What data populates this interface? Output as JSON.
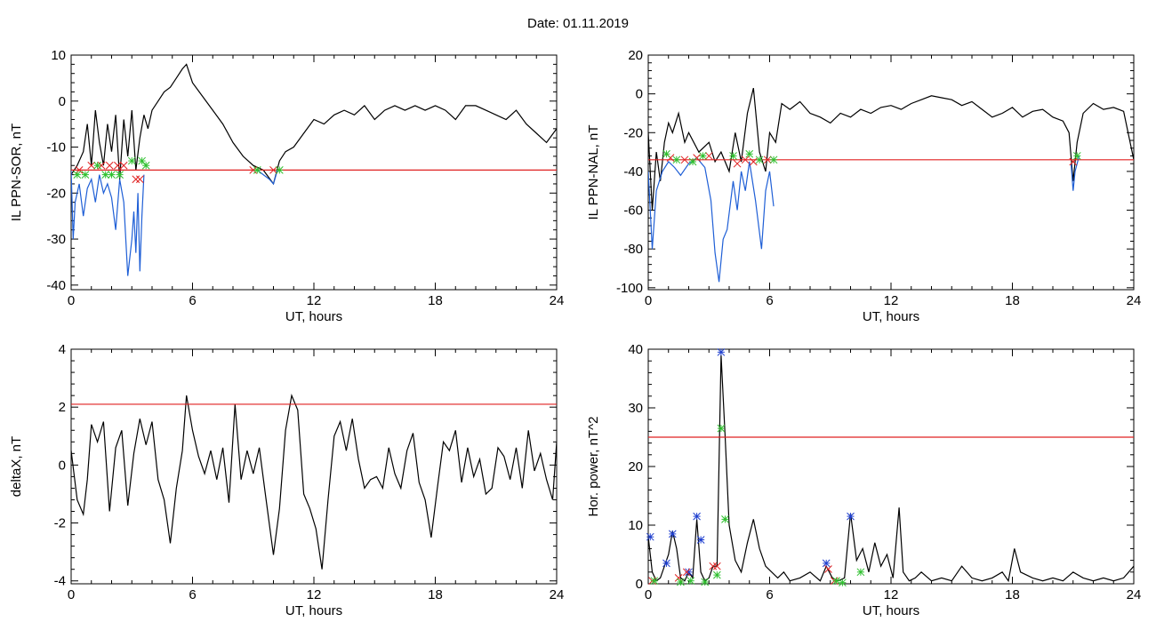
{
  "figure_title": "Date:  01.11.2019",
  "chart_data": [
    {
      "id": "ppn-sor",
      "type": "line",
      "xlabel": "UT, hours",
      "ylabel": "IL PPN-SOR, nT",
      "xlim": [
        0,
        24
      ],
      "ylim": [
        -41,
        10
      ],
      "xticks": [
        0,
        6,
        12,
        18,
        24
      ],
      "yticks": [
        -40,
        -30,
        -20,
        -10,
        0,
        10
      ],
      "threshold": -15,
      "series": [
        {
          "color": "#000000",
          "x": [
            0,
            0.3,
            0.6,
            0.8,
            1.0,
            1.2,
            1.4,
            1.6,
            1.8,
            2.0,
            2.2,
            2.4,
            2.6,
            2.8,
            3.0,
            3.2,
            3.4,
            3.6,
            3.8,
            4.0,
            4.3,
            4.6,
            4.9,
            5.2,
            5.5,
            5.7,
            6.0,
            6.5,
            7.0,
            7.5,
            8.0,
            8.5,
            9.0,
            9.5,
            10.0,
            10.3,
            10.6,
            11.0,
            11.5,
            12.0,
            12.5,
            13.0,
            13.5,
            14.0,
            14.5,
            15.0,
            15.5,
            16.0,
            16.5,
            17.0,
            17.5,
            18.0,
            18.5,
            19.0,
            19.5,
            20.0,
            20.5,
            21.0,
            21.5,
            22.0,
            22.5,
            23.0,
            23.5,
            24.0
          ],
          "y": [
            -16,
            -14,
            -11,
            -5,
            -14,
            -2,
            -9,
            -14,
            -5,
            -11,
            -3,
            -17,
            -4,
            -12,
            -2,
            -15,
            -8,
            -3,
            -6,
            -2,
            0,
            2,
            3,
            5,
            7,
            8,
            4,
            1,
            -2,
            -5,
            -9,
            -12,
            -14,
            -15,
            -18,
            -13,
            -11,
            -10,
            -7,
            -4,
            -5,
            -3,
            -2,
            -3,
            -1,
            -4,
            -2,
            -1,
            -2,
            -1,
            -2,
            -1,
            -2,
            -4,
            -1,
            -1,
            -2,
            -3,
            -4,
            -2,
            -5,
            -7,
            -9,
            -6
          ]
        },
        {
          "color": "#1f5fd6",
          "x": [
            0,
            0.1,
            0.2,
            0.4,
            0.6,
            0.8,
            1.0,
            1.2,
            1.4,
            1.6,
            1.8,
            2.0,
            2.2,
            2.4,
            2.6,
            2.8,
            3.0,
            3.1,
            3.2,
            3.3,
            3.4,
            3.5,
            3.6
          ],
          "y": [
            -15,
            -30,
            -22,
            -18,
            -25,
            -19,
            -17,
            -22,
            -16,
            -20,
            -18,
            -21,
            -28,
            -17,
            -22,
            -38,
            -30,
            -24,
            -33,
            -20,
            -37,
            -25,
            -16
          ]
        },
        {
          "color": "#1f5fd6",
          "x": [
            9.2,
            9.5,
            9.8,
            10.0,
            10.2
          ],
          "y": [
            -15,
            -16,
            -17,
            -18,
            -15
          ]
        }
      ],
      "markers_red": {
        "x": [
          0.4,
          1.0,
          1.5,
          1.9,
          2.3,
          2.6,
          3.2,
          3.4,
          9.0,
          10.0
        ],
        "y": [
          -15,
          -14,
          -14,
          -14,
          -14,
          -14,
          -17,
          -17,
          -15,
          -15
        ]
      },
      "markers_green": {
        "x": [
          0.3,
          0.7,
          1.3,
          1.7,
          2.0,
          2.4,
          3.0,
          3.5,
          3.7,
          9.2,
          10.3
        ],
        "y": [
          -16,
          -16,
          -14,
          -16,
          -16,
          -16,
          -13,
          -13,
          -14,
          -15,
          -15
        ]
      }
    },
    {
      "id": "ppn-nal",
      "type": "line",
      "xlabel": "UT, hours",
      "ylabel": "IL PPN-NAL, nT",
      "xlim": [
        0,
        24
      ],
      "ylim": [
        -101,
        20
      ],
      "xticks": [
        0,
        6,
        12,
        18,
        24
      ],
      "yticks": [
        -100,
        -80,
        -60,
        -40,
        -20,
        0,
        20
      ],
      "threshold": -34,
      "series": [
        {
          "color": "#000000",
          "x": [
            0,
            0.2,
            0.4,
            0.6,
            0.8,
            1.0,
            1.2,
            1.5,
            1.8,
            2.0,
            2.5,
            3.0,
            3.3,
            3.6,
            4.0,
            4.3,
            4.6,
            4.9,
            5.2,
            5.5,
            5.8,
            6.0,
            6.3,
            6.6,
            7.0,
            7.5,
            8.0,
            8.5,
            9.0,
            9.5,
            10.0,
            10.5,
            11.0,
            11.5,
            12.0,
            12.5,
            13.0,
            13.5,
            14.0,
            14.5,
            15.0,
            15.5,
            16.0,
            16.5,
            17.0,
            17.5,
            18.0,
            18.5,
            19.0,
            19.5,
            20.0,
            20.5,
            20.8,
            21.0,
            21.2,
            21.5,
            22.0,
            22.5,
            23.0,
            23.5,
            24.0
          ],
          "y": [
            -20,
            -60,
            -30,
            -45,
            -25,
            -15,
            -20,
            -10,
            -25,
            -20,
            -30,
            -25,
            -35,
            -30,
            -40,
            -20,
            -35,
            -10,
            3,
            -30,
            -40,
            -20,
            -25,
            -5,
            -8,
            -4,
            -10,
            -12,
            -15,
            -10,
            -12,
            -8,
            -10,
            -7,
            -6,
            -8,
            -5,
            -3,
            -1,
            -2,
            -3,
            -6,
            -4,
            -8,
            -12,
            -10,
            -7,
            -12,
            -9,
            -8,
            -12,
            -14,
            -20,
            -45,
            -25,
            -10,
            -5,
            -8,
            -7,
            -9,
            -34
          ]
        },
        {
          "color": "#1f5fd6",
          "x": [
            0,
            0.2,
            0.4,
            0.7,
            1.0,
            1.3,
            1.6,
            2.0,
            2.4,
            2.8,
            3.1,
            3.3,
            3.5,
            3.7,
            3.9,
            4.2,
            4.4,
            4.6,
            4.8,
            5.0,
            5.3,
            5.6,
            5.8,
            6.0,
            6.2
          ],
          "y": [
            -40,
            -80,
            -50,
            -40,
            -35,
            -38,
            -42,
            -36,
            -33,
            -38,
            -55,
            -82,
            -97,
            -75,
            -70,
            -45,
            -60,
            -40,
            -50,
            -35,
            -55,
            -80,
            -50,
            -40,
            -58
          ]
        },
        {
          "color": "#1f5fd6",
          "x": [
            20.9,
            21.0,
            21.1,
            21.3
          ],
          "y": [
            -36,
            -50,
            -40,
            -32
          ]
        }
      ],
      "markers_red": {
        "x": [
          1.1,
          1.8,
          2.4,
          3.0,
          4.4,
          4.8,
          5.2,
          5.9,
          21.0
        ],
        "y": [
          -33,
          -34,
          -33,
          -32,
          -36,
          -34,
          -35,
          -34,
          -35
        ]
      },
      "markers_green": {
        "x": [
          0.9,
          1.4,
          2.2,
          2.7,
          4.2,
          5.0,
          5.5,
          6.2,
          21.2
        ],
        "y": [
          -31,
          -34,
          -35,
          -32,
          -32,
          -31,
          -34,
          -34,
          -32
        ]
      }
    },
    {
      "id": "deltax",
      "type": "line",
      "xlabel": "UT, hours",
      "ylabel": "deltaX, nT",
      "xlim": [
        0,
        24
      ],
      "ylim": [
        -4.1,
        4
      ],
      "xticks": [
        0,
        6,
        12,
        18,
        24
      ],
      "yticks": [
        -4,
        -2,
        0,
        2,
        4
      ],
      "threshold": 2.1,
      "series": [
        {
          "color": "#000000",
          "x": [
            0,
            0.3,
            0.6,
            0.8,
            1.0,
            1.3,
            1.6,
            1.9,
            2.2,
            2.5,
            2.8,
            3.1,
            3.4,
            3.7,
            4.0,
            4.3,
            4.6,
            4.9,
            5.2,
            5.5,
            5.7,
            6.0,
            6.3,
            6.6,
            6.9,
            7.2,
            7.5,
            7.8,
            8.1,
            8.4,
            8.7,
            9.0,
            9.3,
            9.6,
            10.0,
            10.3,
            10.6,
            10.9,
            11.2,
            11.5,
            11.8,
            12.1,
            12.4,
            12.7,
            13.0,
            13.3,
            13.6,
            13.9,
            14.2,
            14.5,
            14.8,
            15.1,
            15.4,
            15.7,
            16.0,
            16.3,
            16.6,
            16.9,
            17.2,
            17.5,
            17.8,
            18.1,
            18.4,
            18.7,
            19.0,
            19.3,
            19.6,
            19.9,
            20.2,
            20.5,
            20.8,
            21.1,
            21.4,
            21.7,
            22.0,
            22.3,
            22.6,
            22.9,
            23.2,
            23.5,
            23.8,
            24.0
          ],
          "y": [
            0.5,
            -1.2,
            -1.7,
            -0.5,
            1.4,
            0.8,
            1.5,
            -1.6,
            0.6,
            1.2,
            -1.4,
            0.4,
            1.6,
            0.7,
            1.5,
            -0.5,
            -1.2,
            -2.7,
            -0.8,
            0.5,
            2.4,
            1.2,
            0.3,
            -0.3,
            0.5,
            -0.5,
            0.6,
            -1.3,
            2.1,
            -0.5,
            0.5,
            -0.3,
            0.6,
            -1.0,
            -3.1,
            -1.5,
            1.2,
            2.4,
            1.9,
            -1.0,
            -1.5,
            -2.2,
            -3.6,
            -1.2,
            1.0,
            1.5,
            0.5,
            1.6,
            0.2,
            -0.8,
            -0.5,
            -0.4,
            -0.8,
            0.6,
            -0.3,
            -0.8,
            0.5,
            1.1,
            -0.6,
            -1.2,
            -2.5,
            -0.8,
            0.8,
            0.5,
            1.2,
            -0.6,
            0.6,
            -0.4,
            0.2,
            -1.0,
            -0.8,
            0.6,
            0.3,
            -0.5,
            0.6,
            -0.8,
            1.2,
            -0.2,
            0.4,
            -0.5,
            -1.2,
            0.8
          ]
        }
      ]
    },
    {
      "id": "hor-power",
      "type": "line",
      "xlabel": "UT, hours",
      "ylabel": "Hor. power, nT^2",
      "xlim": [
        0,
        24
      ],
      "ylim": [
        0,
        40
      ],
      "xticks": [
        0,
        6,
        12,
        18,
        24
      ],
      "yticks": [
        0,
        10,
        20,
        30,
        40
      ],
      "threshold": 25,
      "series": [
        {
          "color": "#000000",
          "x": [
            0,
            0.2,
            0.4,
            0.6,
            0.8,
            1.0,
            1.2,
            1.4,
            1.6,
            1.8,
            2.0,
            2.2,
            2.4,
            2.6,
            2.8,
            3.0,
            3.2,
            3.4,
            3.6,
            3.8,
            4.0,
            4.3,
            4.6,
            4.9,
            5.2,
            5.5,
            5.8,
            6.1,
            6.4,
            6.7,
            7.0,
            7.5,
            8.0,
            8.5,
            8.8,
            9.1,
            9.4,
            9.7,
            10.0,
            10.3,
            10.6,
            10.9,
            11.2,
            11.5,
            11.8,
            12.1,
            12.4,
            12.6,
            12.9,
            13.2,
            13.5,
            14.0,
            14.5,
            15.0,
            15.5,
            16.0,
            16.5,
            17.0,
            17.5,
            17.8,
            18.1,
            18.4,
            19.0,
            19.5,
            20.0,
            20.5,
            21.0,
            21.5,
            22.0,
            22.5,
            23.0,
            23.5,
            24.0
          ],
          "y": [
            8,
            2,
            0.5,
            1,
            3,
            5,
            9,
            6,
            1,
            0.5,
            2,
            1,
            11,
            2,
            0.5,
            1,
            3,
            3,
            39,
            25,
            10,
            4,
            2,
            7,
            11,
            6,
            3,
            2,
            1,
            2,
            0.5,
            1,
            2,
            0.5,
            3,
            1,
            0.5,
            1,
            12,
            4,
            6,
            2,
            7,
            3,
            5,
            1,
            13,
            2,
            0.5,
            1,
            2,
            0.5,
            1,
            0.5,
            3,
            1,
            0.5,
            1,
            2,
            0.5,
            6,
            2,
            1,
            0.5,
            1,
            0.5,
            2,
            1,
            0.5,
            1,
            0.5,
            1,
            3
          ]
        }
      ],
      "markers_blue": {
        "x": [
          0.1,
          0.9,
          1.2,
          2.0,
          2.4,
          2.6,
          3.6,
          8.8,
          10.0
        ],
        "y": [
          8,
          3.5,
          8.5,
          2,
          11.5,
          7.5,
          39.5,
          3.5,
          11.5
        ]
      },
      "markers_red": {
        "x": [
          0.2,
          1.5,
          1.9,
          3.2,
          3.4,
          8.9,
          9.2
        ],
        "y": [
          0.5,
          1,
          2,
          3,
          3,
          2.5,
          0.5
        ]
      },
      "markers_green": {
        "x": [
          0.3,
          1.6,
          2.1,
          2.8,
          3.4,
          3.6,
          3.8,
          9.3,
          9.6,
          10.5
        ],
        "y": [
          0.5,
          0.3,
          0.5,
          0.3,
          1.5,
          26.5,
          11,
          0.5,
          0.2,
          2
        ]
      }
    }
  ]
}
